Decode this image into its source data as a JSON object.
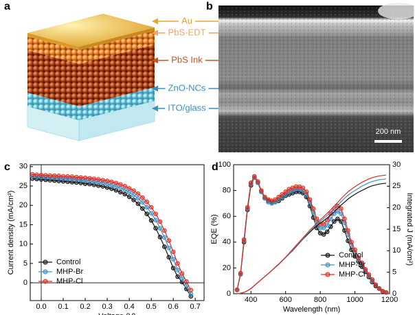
{
  "panel_a": {
    "letter": "a",
    "labels": [
      "Au",
      "PbS-EDT",
      "PbS Ink",
      "ZnO-NCs",
      "ITO/glass"
    ],
    "label_colors": [
      "#eba52a",
      "#f2a468",
      "#c4561c",
      "#3b8fc2",
      "#3b8fc2"
    ]
  },
  "panel_b": {
    "letter": "b",
    "scale_bar": "200 nm"
  },
  "chart_data": [
    {
      "type": "line",
      "label": "c",
      "xlabel": "Voltage (V)",
      "ylabel": "Current density (mA/cm²)",
      "xlim": [
        -0.05,
        0.74
      ],
      "xticks": [
        {
          "value": 0,
          "label": "0.0"
        },
        0.1,
        0.2,
        0.3,
        0.4,
        0.5,
        0.6,
        0.7
      ],
      "ylim": [
        -4.6,
        30.5
      ],
      "yticks": [
        0,
        5,
        10,
        15,
        20,
        25,
        30
      ],
      "zero_lines": true,
      "legend": "lower left",
      "x": [
        -0.04,
        -0.02,
        0,
        0.02,
        0.04,
        0.06,
        0.08,
        0.1,
        0.12,
        0.14,
        0.16,
        0.18,
        0.2,
        0.22,
        0.24,
        0.26,
        0.28,
        0.3,
        0.32,
        0.34,
        0.36,
        0.38,
        0.4,
        0.42,
        0.44,
        0.46,
        0.48,
        0.5,
        0.52,
        0.54,
        0.56,
        0.58,
        0.6,
        0.62,
        0.64,
        0.66,
        0.68
      ],
      "series": [
        {
          "name": "Control",
          "color": "#111111",
          "marker": "o",
          "values": [
            26.9,
            26.8,
            26.7,
            26.6,
            26.5,
            26.4,
            26.3,
            26.2,
            26.1,
            26.0,
            25.9,
            25.8,
            25.6,
            25.5,
            25.3,
            25.1,
            24.9,
            24.6,
            24.3,
            23.9,
            23.4,
            22.9,
            22.2,
            21.4,
            20.4,
            19.2,
            17.8,
            16.1,
            14.1,
            11.8,
            9.3,
            6.6,
            3.8,
            1.6,
            0.2,
            -1.6,
            -3.5
          ]
        },
        {
          "name": "MHP-Br",
          "color": "#3a90c8",
          "marker": "o",
          "values": [
            27.5,
            27.4,
            27.3,
            27.25,
            27.2,
            27.1,
            27.0,
            26.95,
            26.85,
            26.75,
            26.65,
            26.55,
            26.4,
            26.3,
            26.1,
            25.95,
            25.75,
            25.5,
            25.2,
            24.9,
            24.5,
            24.0,
            23.4,
            22.7,
            21.8,
            20.8,
            19.5,
            18.0,
            16.2,
            14.1,
            11.7,
            9.0,
            6.1,
            3.3,
            1.1,
            -0.7,
            -2.8
          ]
        },
        {
          "name": "MHP-Cl",
          "color": "#e02a1e",
          "marker": "o",
          "values": [
            28.0,
            27.9,
            27.8,
            27.75,
            27.7,
            27.65,
            27.6,
            27.5,
            27.45,
            27.4,
            27.3,
            27.2,
            27.1,
            27.0,
            26.85,
            26.7,
            26.5,
            26.3,
            26.05,
            25.75,
            25.4,
            24.95,
            24.4,
            23.8,
            23.0,
            22.0,
            20.9,
            19.5,
            17.8,
            15.8,
            13.5,
            10.9,
            8.0,
            5.0,
            2.4,
            0.3,
            -1.9
          ]
        }
      ]
    },
    {
      "type": "line",
      "label": "d",
      "xlabel": "Wavelength (nm)",
      "ylabel": "EQE (%)",
      "y2label": "Integrated J (mA/cm²)",
      "xlim": [
        300,
        1200
      ],
      "xticks": [
        400,
        600,
        800,
        1000,
        1200
      ],
      "ylim": [
        0,
        100
      ],
      "yticks": [
        0,
        20,
        40,
        60,
        80,
        100
      ],
      "y2lim": [
        0,
        30
      ],
      "y2ticks": [
        0,
        5,
        10,
        15,
        20,
        25,
        30
      ],
      "legend": "lower right",
      "x": [
        320,
        340,
        360,
        380,
        400,
        420,
        440,
        460,
        480,
        500,
        520,
        540,
        560,
        580,
        600,
        620,
        640,
        660,
        680,
        700,
        720,
        740,
        760,
        780,
        800,
        820,
        840,
        860,
        880,
        900,
        920,
        940,
        960,
        980,
        1000,
        1020,
        1040,
        1060,
        1080,
        1100,
        1120,
        1140,
        1160,
        1180
      ],
      "series": [
        {
          "name": "Control",
          "color": "#111111",
          "marker": "o",
          "values": [
            3,
            15,
            40,
            65,
            84,
            90,
            86,
            79,
            74,
            72,
            71,
            71,
            72,
            74,
            76,
            77,
            78,
            79,
            79,
            78,
            75,
            68,
            59,
            51,
            47,
            46,
            48,
            52,
            56,
            58,
            56,
            49,
            41,
            34,
            29,
            25,
            21,
            17,
            13,
            9,
            6,
            4,
            2,
            1
          ]
        },
        {
          "name": "MHP-Br",
          "color": "#3a90c8",
          "marker": "o",
          "values": [
            3,
            15,
            41,
            66,
            85,
            90,
            86,
            79,
            74,
            71,
            70,
            71,
            73,
            75,
            77,
            79,
            80,
            81,
            81,
            80,
            77,
            71,
            63,
            55,
            51,
            51,
            53,
            58,
            62,
            64,
            62,
            55,
            46,
            38,
            32,
            27,
            23,
            18,
            14,
            10,
            7,
            4,
            2,
            1
          ]
        },
        {
          "name": "MHP-Cl",
          "color": "#e02a1e",
          "marker": "o",
          "values": [
            3,
            16,
            42,
            67,
            86,
            91,
            87,
            80,
            75,
            73,
            72,
            73,
            75,
            77,
            79,
            81,
            82,
            83,
            83,
            82,
            79,
            73,
            66,
            58,
            54,
            54,
            57,
            62,
            66,
            68,
            66,
            58,
            49,
            40,
            34,
            28,
            24,
            19,
            15,
            11,
            7,
            4,
            2,
            1
          ]
        },
        {
          "color": "#111111",
          "axis": "y2",
          "values": [
            0,
            0.1,
            0.3,
            0.7,
            1.2,
            1.9,
            2.6,
            3.3,
            4.0,
            4.7,
            5.4,
            6.1,
            6.8,
            7.6,
            8.4,
            9.2,
            10.0,
            10.9,
            11.8,
            12.7,
            13.5,
            14.3,
            15.1,
            15.8,
            16.4,
            17.0,
            17.6,
            18.3,
            19.0,
            19.8,
            20.6,
            21.3,
            22.0,
            22.6,
            23.1,
            23.6,
            24.0,
            24.4,
            24.8,
            25.1,
            25.3,
            25.5,
            25.6,
            25.7
          ]
        },
        {
          "color": "#3a90c8",
          "axis": "y2",
          "values": [
            0,
            0.1,
            0.3,
            0.7,
            1.2,
            1.9,
            2.6,
            3.3,
            4.0,
            4.7,
            5.4,
            6.1,
            6.8,
            7.6,
            8.4,
            9.2,
            10.1,
            11.0,
            11.9,
            12.8,
            13.7,
            14.5,
            15.3,
            16.1,
            16.8,
            17.5,
            18.2,
            19.0,
            19.8,
            20.6,
            21.4,
            22.2,
            22.9,
            23.5,
            24.0,
            24.5,
            25.0,
            25.4,
            25.8,
            26.1,
            26.3,
            26.5,
            26.6,
            26.7
          ]
        },
        {
          "color": "#e02a1e",
          "axis": "y2",
          "values": [
            0,
            0.1,
            0.3,
            0.7,
            1.2,
            1.9,
            2.6,
            3.3,
            4.0,
            4.7,
            5.4,
            6.2,
            6.9,
            7.7,
            8.5,
            9.4,
            10.3,
            11.2,
            12.1,
            13.0,
            13.9,
            14.8,
            15.6,
            16.4,
            17.2,
            17.9,
            18.7,
            19.5,
            20.4,
            21.2,
            22.1,
            22.9,
            23.7,
            24.3,
            24.9,
            25.4,
            25.9,
            26.3,
            26.7,
            27.0,
            27.2,
            27.4,
            27.5,
            27.6
          ]
        }
      ]
    }
  ]
}
